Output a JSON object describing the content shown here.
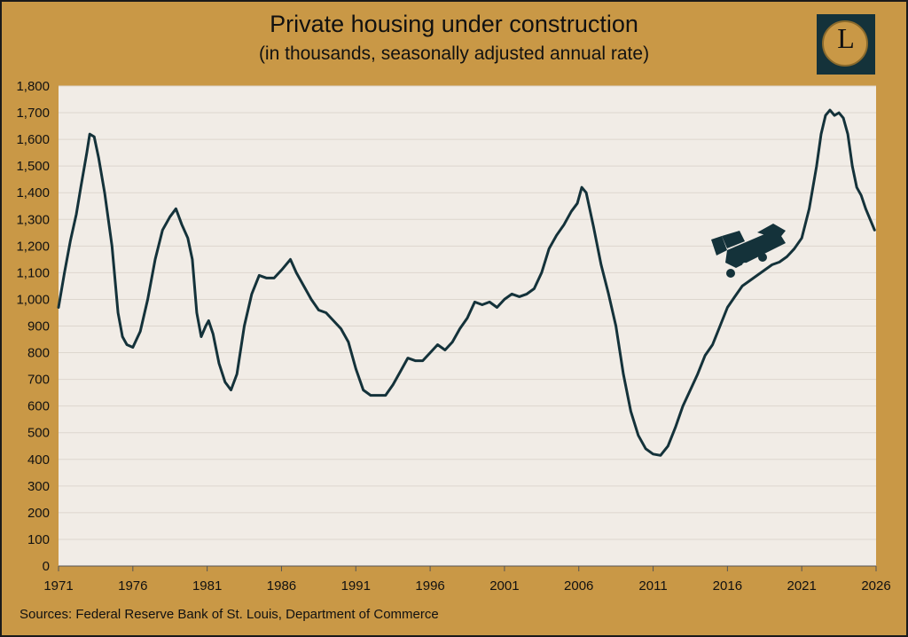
{
  "title": "Private housing under construction",
  "subtitle": "(in thousands, seasonally adjusted annual rate)",
  "logo_letter": "L",
  "source": "Sources: Federal Reserve Bank of St. Louis, Department of Commerce",
  "colors": {
    "background": "#C99846",
    "plot_area": "#F1ECE6",
    "line": "#14323A",
    "grid": "#DDD6CE"
  },
  "chart_data": {
    "type": "line",
    "title": "Private housing under construction",
    "subtitle": "(in thousands, seasonally adjusted annual rate)",
    "xlabel": "",
    "ylabel": "",
    "xlim": [
      1971,
      2026
    ],
    "ylim": [
      0,
      1800
    ],
    "grid": true,
    "x_ticks": [
      1971,
      1976,
      1981,
      1986,
      1991,
      1996,
      2001,
      2006,
      2011,
      2016,
      2021,
      2026
    ],
    "x_tick_labels": [
      "1971",
      "1976",
      "1981",
      "1986",
      "1991",
      "1996",
      "2001",
      "2006",
      "2011",
      "2016",
      "2021",
      "2026"
    ],
    "y_ticks": [
      0,
      100,
      200,
      300,
      400,
      500,
      600,
      700,
      800,
      900,
      1000,
      1100,
      1200,
      1300,
      1400,
      1500,
      1600,
      1700,
      1800
    ],
    "y_tick_labels": [
      "0",
      "100",
      "200",
      "300",
      "400",
      "500",
      "600",
      "700",
      "800",
      "900",
      "1,000",
      "1,100",
      "1,200",
      "1,300",
      "1,400",
      "1,500",
      "1,600",
      "1,700",
      "1,800"
    ],
    "series": [
      {
        "x": [
          1971.0,
          1971.4,
          1971.8,
          1972.2,
          1972.5,
          1972.9,
          1973.1,
          1973.4,
          1973.7,
          1974.1,
          1974.6,
          1975.0,
          1975.3,
          1975.6,
          1976.0,
          1976.5,
          1977.0,
          1977.5,
          1978.0,
          1978.5,
          1978.9,
          1979.3,
          1979.7,
          1980.0,
          1980.3,
          1980.6,
          1980.9,
          1981.1,
          1981.4,
          1981.8,
          1982.2,
          1982.6,
          1983.0,
          1983.5,
          1984.0,
          1984.5,
          1985.0,
          1985.5,
          1986.0,
          1986.6,
          1987.0,
          1987.5,
          1988.0,
          1988.5,
          1989.0,
          1989.5,
          1990.0,
          1990.5,
          1991.0,
          1991.5,
          1992.0,
          1992.5,
          1993.0,
          1993.5,
          1994.0,
          1994.5,
          1995.0,
          1995.5,
          1996.0,
          1996.5,
          1997.0,
          1997.5,
          1998.0,
          1998.5,
          1999.0,
          1999.5,
          2000.0,
          2000.5,
          2001.0,
          2001.5,
          2002.0,
          2002.5,
          2003.0,
          2003.5,
          2004.0,
          2004.5,
          2005.0,
          2005.5,
          2005.9,
          2006.2,
          2006.5,
          2007.0,
          2007.5,
          2008.0,
          2008.5,
          2009.0,
          2009.5,
          2010.0,
          2010.5,
          2011.0,
          2011.5,
          2012.0,
          2012.5,
          2013.0,
          2013.5,
          2014.0,
          2014.5,
          2015.0,
          2015.5,
          2016.0,
          2016.5,
          2017.0,
          2017.5,
          2018.0,
          2018.5,
          2019.0,
          2019.5,
          2020.0,
          2020.5,
          2021.0,
          2021.5,
          2022.0,
          2022.3,
          2022.6,
          2022.9,
          2023.2,
          2023.5,
          2023.8,
          2024.1,
          2024.4,
          2024.7,
          2025.0,
          2025.3,
          2025.6,
          2025.9
        ],
        "values": [
          970,
          1100,
          1220,
          1320,
          1420,
          1550,
          1620,
          1610,
          1530,
          1400,
          1200,
          950,
          860,
          830,
          820,
          880,
          1000,
          1150,
          1260,
          1310,
          1340,
          1280,
          1230,
          1150,
          950,
          860,
          900,
          920,
          870,
          760,
          690,
          660,
          720,
          900,
          1020,
          1090,
          1080,
          1080,
          1110,
          1150,
          1100,
          1050,
          1000,
          960,
          950,
          920,
          890,
          840,
          740,
          660,
          640,
          640,
          640,
          680,
          730,
          780,
          770,
          770,
          800,
          830,
          810,
          840,
          890,
          930,
          990,
          980,
          990,
          970,
          1000,
          1020,
          1010,
          1020,
          1040,
          1100,
          1190,
          1240,
          1280,
          1330,
          1360,
          1420,
          1400,
          1270,
          1130,
          1020,
          900,
          720,
          580,
          490,
          440,
          420,
          415,
          450,
          520,
          600,
          660,
          720,
          790,
          830,
          900,
          970,
          1010,
          1050,
          1070,
          1090,
          1110,
          1130,
          1140,
          1160,
          1190,
          1230,
          1340,
          1500,
          1620,
          1690,
          1710,
          1690,
          1700,
          1680,
          1620,
          1500,
          1420,
          1390,
          1340,
          1300,
          1260
        ]
      }
    ]
  }
}
